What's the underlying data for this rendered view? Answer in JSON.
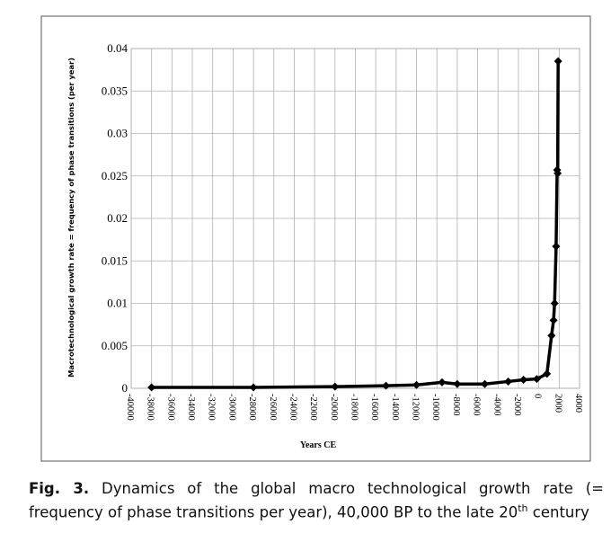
{
  "chart_data": {
    "type": "line",
    "xlabel": "Years CE",
    "ylabel": "Macrotechnological  growth rate = frequency of phase transitions (per year)",
    "series": [
      {
        "color": "#000000",
        "x": [
          -38000,
          -28000,
          -20000,
          -15000,
          -12000,
          -9500,
          -8000,
          -5300,
          -3000,
          -1500,
          -200,
          800,
          1250,
          1450,
          1550,
          1700,
          1800,
          1850,
          1900
        ],
        "values": [
          0.0001,
          0.0001,
          0.0002,
          0.0003,
          0.0004,
          0.0007,
          0.0005,
          0.0005,
          0.0008,
          0.001,
          0.0011,
          0.0017,
          0.0062,
          0.008,
          0.01,
          0.0167,
          0.0257,
          0.0253,
          0.0385
        ]
      }
    ],
    "xlim": [
      -40000,
      4000
    ],
    "xticks": [
      -40000,
      -38000,
      -36000,
      -34000,
      -32000,
      -30000,
      -28000,
      -26000,
      -24000,
      -22000,
      -20000,
      -18000,
      -16000,
      -14000,
      -12000,
      -10000,
      -8000,
      -6000,
      -4000,
      -2000,
      0,
      2000,
      4000
    ],
    "ylim": [
      0,
      0.04
    ],
    "yticks": [
      0,
      0.005,
      0.01,
      0.015,
      0.02,
      0.025,
      0.03,
      0.035,
      0.04
    ],
    "grid": true
  },
  "caption": {
    "label": "Fig. 3.",
    "text": "Dynamics of the global macro technological growth rate (= frequency of phase transitions per year), 40,000 BP to the late 20",
    "sup": "th",
    "text_end": " century"
  }
}
